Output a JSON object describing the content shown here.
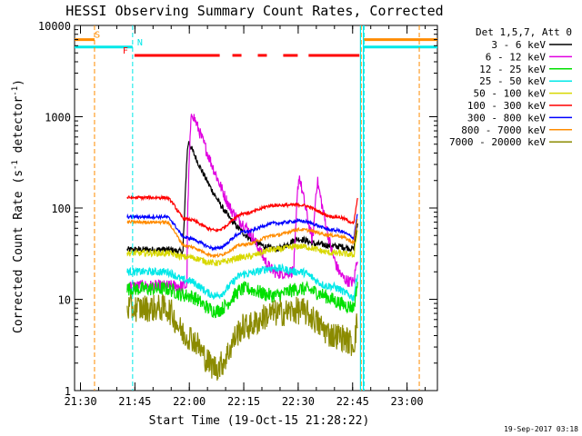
{
  "chart_data": {
    "type": "line",
    "title": "HESSI Observing Summary Count Rates, Corrected",
    "xlabel": "Start Time (19-Oct-15 21:28:22)",
    "ylabel_main": "Corrected Count Rate (s",
    "ylabel_sup1": "-1",
    "ylabel_mid": " detector",
    "ylabel_sup2": "-1",
    "ylabel_end": ")",
    "yscale": "log",
    "ylim": [
      1,
      10000
    ],
    "xlim_minutes": [
      0,
      100
    ],
    "x_start": "21:28:22",
    "xticks": [
      {
        "label": "21:30",
        "m": 1.63
      },
      {
        "label": "21:45",
        "m": 16.63
      },
      {
        "label": "22:00",
        "m": 31.63
      },
      {
        "label": "22:15",
        "m": 46.63
      },
      {
        "label": "22:30",
        "m": 61.63
      },
      {
        "label": "22:45",
        "m": 76.63
      },
      {
        "label": "23:00",
        "m": 91.63
      }
    ],
    "yticks": [
      {
        "label": "1",
        "v": 1
      },
      {
        "label": "10",
        "v": 10
      },
      {
        "label": "100",
        "v": 100
      },
      {
        "label": "1000",
        "v": 1000
      },
      {
        "label": "10000",
        "v": 10000
      }
    ],
    "legend_title": "Det 1,5,7, Att 0",
    "legend_position": "right",
    "series": [
      {
        "name": "3 - 6 keV",
        "color": "#000000",
        "base": 35,
        "ranges": [
          [
            25,
            35
          ],
          [
            31,
            33
          ],
          [
            38,
            39
          ],
          [
            55,
            33
          ],
          [
            62,
            45
          ],
          [
            67,
            40
          ],
          [
            72,
            38
          ],
          [
            79,
            35
          ]
        ],
        "peaks": [
          [
            31.5,
            550,
            10
          ]
        ],
        "noise": 0.08
      },
      {
        "name": "6 - 12 keV",
        "color": "#e000e0",
        "base": 18,
        "ranges": [
          [
            32,
            14
          ],
          [
            37,
            9
          ],
          [
            41,
            15
          ],
          [
            47,
            34
          ],
          [
            55,
            16
          ],
          [
            62,
            20
          ],
          [
            69,
            12
          ],
          [
            79,
            15
          ]
        ],
        "peaks": [
          [
            32.5,
            1150,
            9
          ],
          [
            62,
            230,
            4
          ],
          [
            67,
            200,
            4
          ]
        ],
        "noise": 0.15
      },
      {
        "name": "12 - 25 keV",
        "color": "#00e000",
        "base": 13,
        "ranges": [
          [
            25,
            13
          ],
          [
            31,
            11
          ],
          [
            39,
            7.5
          ],
          [
            47,
            13
          ],
          [
            55,
            11
          ],
          [
            62,
            13
          ],
          [
            79,
            8
          ]
        ],
        "peaks": [],
        "noise": 0.18
      },
      {
        "name": "25 - 50 keV",
        "color": "#00e8e8",
        "base": 18,
        "ranges": [
          [
            25,
            20
          ],
          [
            31,
            16
          ],
          [
            39,
            11
          ],
          [
            47,
            19
          ],
          [
            55,
            22
          ],
          [
            62,
            20
          ],
          [
            70,
            14
          ],
          [
            79,
            10
          ]
        ],
        "peaks": [],
        "noise": 0.1
      },
      {
        "name": "50 - 100 keV",
        "color": "#d8d800",
        "base": 30,
        "ranges": [
          [
            25,
            32
          ],
          [
            31,
            29
          ],
          [
            39,
            25
          ],
          [
            47,
            29
          ],
          [
            55,
            35
          ],
          [
            62,
            38
          ],
          [
            72,
            32
          ],
          [
            79,
            30
          ]
        ],
        "peaks": [],
        "noise": 0.08
      },
      {
        "name": "100 - 300 keV",
        "color": "#ff0000",
        "base": 130,
        "ranges": [
          [
            25,
            130
          ],
          [
            31,
            75
          ],
          [
            39,
            57
          ],
          [
            47,
            88
          ],
          [
            55,
            107
          ],
          [
            62,
            108
          ],
          [
            72,
            80
          ],
          [
            79,
            65
          ]
        ],
        "peaks": [],
        "noise": 0.04
      },
      {
        "name": "300 - 800 keV",
        "color": "#0000ff",
        "base": 80,
        "ranges": [
          [
            25,
            80
          ],
          [
            31,
            47
          ],
          [
            39,
            36
          ],
          [
            47,
            55
          ],
          [
            55,
            68
          ],
          [
            62,
            72
          ],
          [
            72,
            57
          ],
          [
            79,
            45
          ]
        ],
        "peaks": [],
        "noise": 0.04
      },
      {
        "name": "800 - 7000 keV",
        "color": "#ff8c00",
        "base": 70,
        "ranges": [
          [
            25,
            70
          ],
          [
            31,
            38
          ],
          [
            39,
            30
          ],
          [
            47,
            40
          ],
          [
            55,
            50
          ],
          [
            62,
            58
          ],
          [
            72,
            50
          ],
          [
            79,
            40
          ]
        ],
        "peaks": [],
        "noise": 0.04
      },
      {
        "name": "7000 - 20000 keV",
        "color": "#8b8b00",
        "base": 8,
        "ranges": [
          [
            25,
            8
          ],
          [
            31,
            4
          ],
          [
            39,
            1.8
          ],
          [
            47,
            5
          ],
          [
            55,
            7
          ],
          [
            62,
            7.5
          ],
          [
            72,
            4
          ],
          [
            79,
            3
          ]
        ],
        "peaks": [],
        "noise": 0.35
      }
    ],
    "data_range_minutes": [
      14.5,
      78
    ],
    "flags": [
      {
        "code": "S",
        "label": "S",
        "color": "#ff8c00",
        "value": 7000,
        "segments": [
          [
            0,
            5.5
          ],
          [
            79.5,
            100
          ]
        ]
      },
      {
        "code": "N",
        "label": "N",
        "color": "#00e8e8",
        "value": 5800,
        "segments": [
          [
            0,
            16
          ],
          [
            79.5,
            100
          ]
        ]
      },
      {
        "code": "F",
        "label": "F",
        "color": "#ff0000",
        "value": 4700,
        "segments": [
          [
            16.5,
            40
          ],
          [
            43.5,
            46
          ],
          [
            50.5,
            53
          ],
          [
            57.5,
            61.5
          ],
          [
            64.5,
            78.5
          ]
        ]
      }
    ],
    "vlines": [
      {
        "m": 5.5,
        "color": "#ff8c00"
      },
      {
        "m": 16.0,
        "color": "#00e8e8"
      },
      {
        "m": 79.0,
        "color": "#ff8c00"
      },
      {
        "m": 79.8,
        "color": "#00e8e8"
      },
      {
        "m": 95.0,
        "color": "#ff8c00"
      }
    ],
    "solid_vlines": [
      {
        "m": 78.8,
        "color": "#00e8e8"
      },
      {
        "m": 79.6,
        "color": "#00e8e8"
      }
    ]
  },
  "footer_date": "19-Sep-2017 03:18"
}
